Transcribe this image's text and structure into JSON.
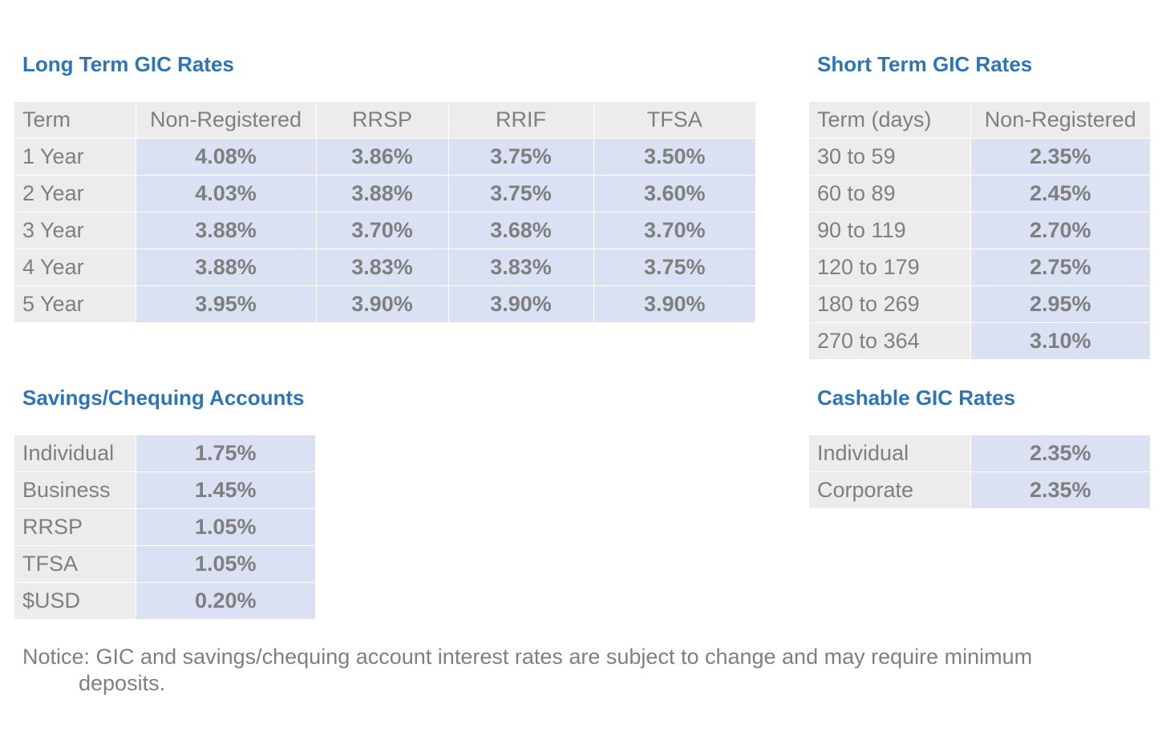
{
  "long_term": {
    "title": "Long Term GIC Rates",
    "headers": [
      "Term",
      "Non-Registered",
      "RRSP",
      "RRIF",
      "TFSA"
    ],
    "rows": [
      {
        "term": "1 Year",
        "non_registered": "4.08%",
        "rrsp": "3.86%",
        "rrif": "3.75%",
        "tfsa": "3.50%"
      },
      {
        "term": "2 Year",
        "non_registered": "4.03%",
        "rrsp": "3.88%",
        "rrif": "3.75%",
        "tfsa": "3.60%"
      },
      {
        "term": "3 Year",
        "non_registered": "3.88%",
        "rrsp": "3.70%",
        "rrif": "3.68%",
        "tfsa": "3.70%"
      },
      {
        "term": "4 Year",
        "non_registered": "3.88%",
        "rrsp": "3.83%",
        "rrif": "3.83%",
        "tfsa": "3.75%"
      },
      {
        "term": "5 Year",
        "non_registered": "3.95%",
        "rrsp": "3.90%",
        "rrif": "3.90%",
        "tfsa": "3.90%"
      }
    ]
  },
  "short_term": {
    "title": "Short Term GIC Rates",
    "headers": [
      "Term (days)",
      "Non-Registered"
    ],
    "rows": [
      {
        "term": "30 to 59",
        "rate": "2.35%"
      },
      {
        "term": "60 to 89",
        "rate": "2.45%"
      },
      {
        "term": "90 to 119",
        "rate": "2.70%"
      },
      {
        "term": "120 to 179",
        "rate": "2.75%"
      },
      {
        "term": "180 to 269",
        "rate": "2.95%"
      },
      {
        "term": "270 to 364",
        "rate": "3.10%"
      }
    ]
  },
  "savings": {
    "title": "Savings/Chequing Accounts",
    "rows": [
      {
        "label": "Individual",
        "rate": "1.75%"
      },
      {
        "label": "Business",
        "rate": "1.45%"
      },
      {
        "label": "RRSP",
        "rate": "1.05%"
      },
      {
        "label": "TFSA",
        "rate": "1.05%"
      },
      {
        "label": "$USD",
        "rate": "0.20%"
      }
    ]
  },
  "cashable": {
    "title": "Cashable GIC Rates",
    "rows": [
      {
        "label": "Individual",
        "rate": "2.35%"
      },
      {
        "label": "Corporate",
        "rate": "2.35%"
      }
    ]
  },
  "notice": {
    "line1": "Notice: GIC and savings/chequing account interest rates are subject to change and may require minimum",
    "line2": "deposits."
  },
  "colors": {
    "heading": "#2e75b6",
    "label_bg": "#ececec",
    "value_bg": "#d9e1f2",
    "text": "#7f7f7f"
  }
}
